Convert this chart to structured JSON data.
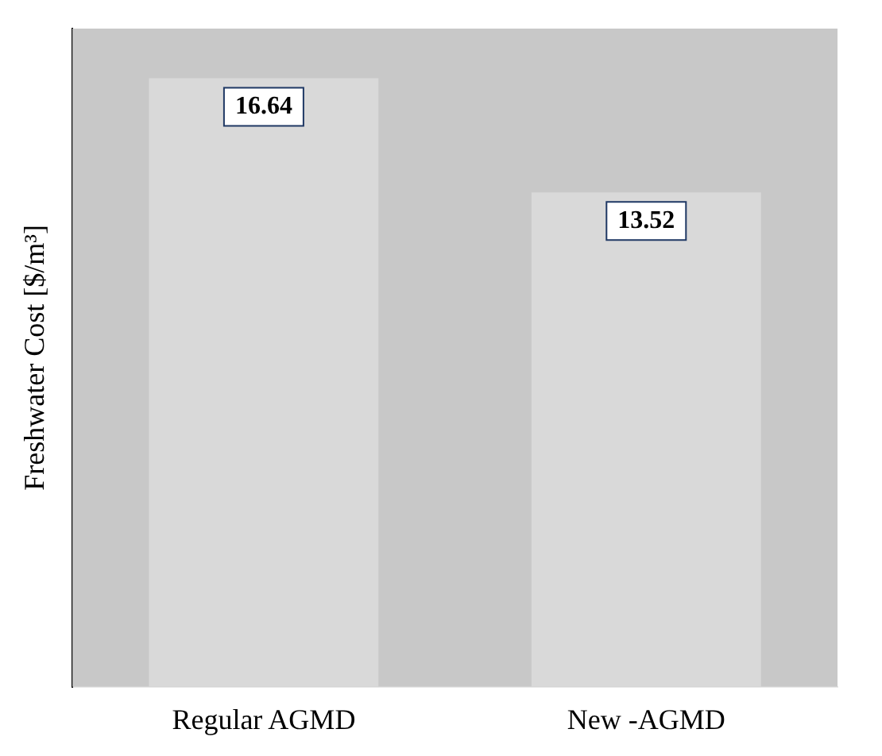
{
  "chart_data": {
    "type": "bar",
    "ylabel": "Freshwater Cost [$/m³]",
    "categories": [
      "Regular AGMD",
      "New -AGMD"
    ],
    "values": [
      16.64,
      13.52
    ],
    "color": "#d9d9d9",
    "data_labels": true,
    "grid": false,
    "legend": false
  }
}
